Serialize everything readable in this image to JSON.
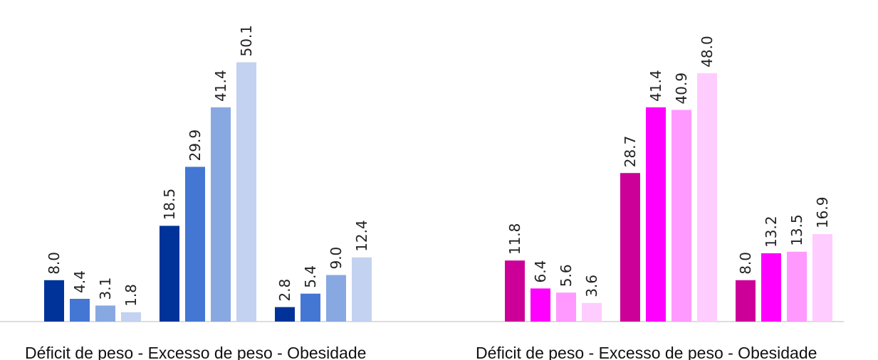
{
  "chart_data": [
    {
      "type": "bar",
      "title": "",
      "categories": [
        "Déficit de peso",
        "Excesso de peso",
        "Obesidade"
      ],
      "group_label": "Déficit de peso - Excesso de peso  - Obesidade",
      "colors": [
        "#003399",
        "#4477d4",
        "#88a8e2",
        "#c2d2f0"
      ],
      "series": [
        {
          "values": [
            8.0,
            18.5,
            2.8
          ]
        },
        {
          "values": [
            4.4,
            29.9,
            5.4
          ]
        },
        {
          "values": [
            3.1,
            41.4,
            9.0
          ]
        },
        {
          "values": [
            1.8,
            50.1,
            12.4
          ]
        }
      ],
      "ylim": [
        0,
        60
      ],
      "grid": false
    },
    {
      "type": "bar",
      "title": "",
      "categories": [
        "Déficit de peso",
        "Excesso de peso",
        "Obesidade"
      ],
      "group_label": "Déficit de peso - Excesso de peso  - Obesidade",
      "colors": [
        "#cc0099",
        "#ff00ff",
        "#ff99ff",
        "#ffccff"
      ],
      "series": [
        {
          "values": [
            11.8,
            28.7,
            8.0
          ]
        },
        {
          "values": [
            6.4,
            41.4,
            13.2
          ]
        },
        {
          "values": [
            5.6,
            40.9,
            13.5
          ]
        },
        {
          "values": [
            3.6,
            48.0,
            16.9
          ]
        }
      ],
      "ylim": [
        0,
        60
      ],
      "grid": false
    }
  ]
}
